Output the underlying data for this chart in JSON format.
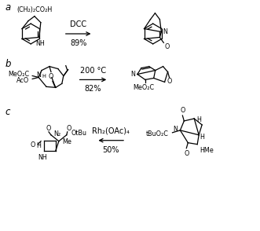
{
  "bg": "#ffffff",
  "label_a": "a",
  "label_b": "b",
  "label_c": "c",
  "row_a_reagent1": "DCC",
  "row_a_reagent2": "89%",
  "row_b_reagent1": "200 °C",
  "row_b_reagent2": "82%",
  "row_c_reagent1": "Rh₂(OAc)₄",
  "row_c_reagent2": "50%",
  "ch2co2h": "(CH₂)₂CO₂H",
  "nh": "NH",
  "meo2c_b": "MeO₂C",
  "aco": "AcO",
  "h_b": "H",
  "o_b": "O",
  "meo2c_prod": "MeO₂C",
  "o_prod_b": "O",
  "n_prod_b": "N",
  "o1c": "O",
  "o2c": "O",
  "otbu": "OtBu",
  "n2": "N₂",
  "me_c": "Me",
  "h_c": "H",
  "nh_c": "NH",
  "o_c": "O",
  "tbu": "tBuO₂C",
  "h1p": "H",
  "hme": "HMe",
  "n_cp": "N",
  "o_cp": "O",
  "h_cp": "H"
}
